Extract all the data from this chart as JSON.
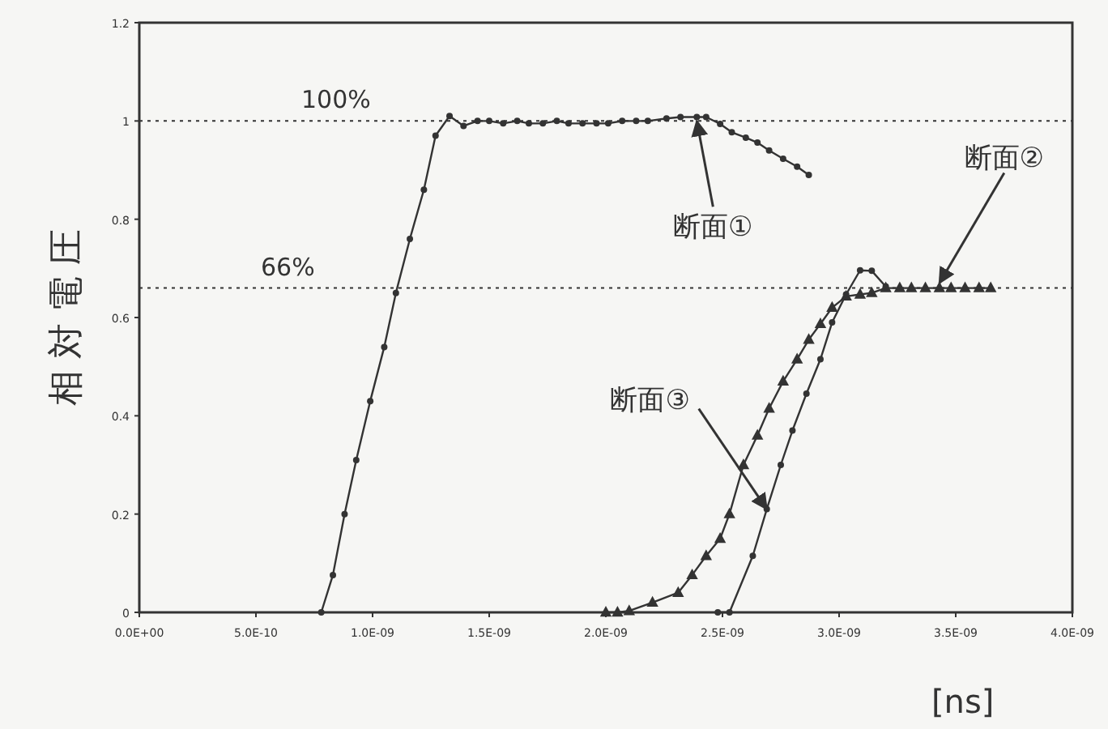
{
  "chart_data": {
    "type": "line",
    "xlabel": "[ns]",
    "ylabel": "相 対 電 圧",
    "xlim": [
      0,
      4e-09
    ],
    "ylim": [
      0,
      1.2
    ],
    "xticks": [
      {
        "value": 0,
        "label": "0.0E+00"
      },
      {
        "value": 5e-10,
        "label": "5.0E-10"
      },
      {
        "value": 1e-09,
        "label": "1.0E-09"
      },
      {
        "value": 1.5e-09,
        "label": "1.5E-09"
      },
      {
        "value": 2e-09,
        "label": "2.0E-09"
      },
      {
        "value": 2.5e-09,
        "label": "2.5E-09"
      },
      {
        "value": 3e-09,
        "label": "3.0E-09"
      },
      {
        "value": 3.5e-09,
        "label": "3.5E-09"
      },
      {
        "value": 4e-09,
        "label": "4.0E-09"
      }
    ],
    "yticks": [
      0,
      0.2,
      0.4,
      0.6,
      0.8,
      1,
      1.2
    ],
    "grid": false,
    "line_style": "solid",
    "series": [
      {
        "color": "#333333",
        "marker": "circle",
        "x": [
          7.8e-10,
          8.3e-10,
          8.8e-10,
          9.3e-10,
          9.9e-10,
          1.05e-09,
          1.1e-09,
          1.16e-09,
          1.22e-09,
          1.27e-09,
          1.33e-09,
          1.39e-09,
          1.45e-09,
          1.5e-09,
          1.56e-09,
          1.62e-09,
          1.67e-09,
          1.73e-09,
          1.79e-09,
          1.84e-09,
          1.9e-09,
          1.96e-09,
          2.01e-09,
          2.07e-09,
          2.13e-09,
          2.18e-09,
          2.26e-09,
          2.32e-09,
          2.39e-09,
          2.43e-09,
          2.49e-09,
          2.54e-09,
          2.6e-09,
          2.65e-09,
          2.7e-09,
          2.76e-09,
          2.82e-09,
          2.87e-09
        ],
        "values": [
          0,
          0.076,
          0.2,
          0.31,
          0.43,
          0.54,
          0.65,
          0.76,
          0.86,
          0.97,
          1.01,
          0.99,
          1.0,
          1.0,
          0.995,
          1.0,
          0.995,
          0.995,
          1.0,
          0.995,
          0.995,
          0.995,
          0.995,
          1.0,
          1.0,
          1.0,
          1.005,
          1.008,
          1.008,
          1.008,
          0.994,
          0.977,
          0.966,
          0.956,
          0.94,
          0.923,
          0.907,
          0.89
        ]
      },
      {
        "color": "#333333",
        "marker": "triangle",
        "x": [
          2e-09,
          2.05e-09,
          2.1e-09,
          2.2e-09,
          2.31e-09,
          2.37e-09,
          2.43e-09,
          2.49e-09,
          2.53e-09,
          2.59e-09,
          2.65e-09,
          2.7e-09,
          2.76e-09,
          2.82e-09,
          2.87e-09,
          2.92e-09,
          2.97e-09,
          3.03e-09,
          3.09e-09,
          3.14e-09,
          3.2e-09,
          3.26e-09,
          3.31e-09,
          3.37e-09,
          3.43e-09,
          3.48e-09,
          3.54e-09,
          3.6e-09,
          3.65e-09
        ],
        "values": [
          0,
          0,
          0.003,
          0.02,
          0.04,
          0.076,
          0.115,
          0.15,
          0.2,
          0.3,
          0.36,
          0.415,
          0.47,
          0.515,
          0.555,
          0.587,
          0.62,
          0.643,
          0.647,
          0.65,
          0.66,
          0.66,
          0.66,
          0.66,
          0.66,
          0.66,
          0.66,
          0.66,
          0.66
        ]
      },
      {
        "color": "#333333",
        "marker": "circle",
        "x": [
          2.48e-09,
          2.53e-09,
          2.63e-09,
          2.69e-09,
          2.75e-09,
          2.8e-09,
          2.86e-09,
          2.92e-09,
          2.97e-09,
          3.03e-09,
          3.09e-09,
          3.14e-09,
          3.2e-09
        ],
        "values": [
          0,
          0,
          0.115,
          0.21,
          0.3,
          0.37,
          0.445,
          0.515,
          0.59,
          0.647,
          0.696,
          0.695,
          0.663
        ]
      }
    ],
    "ref_lines": [
      {
        "axis": "y",
        "value": 1,
        "label": "100%",
        "line_style": "dotted"
      },
      {
        "axis": "y",
        "value": 0.66,
        "label": "66%",
        "line_style": "dotted"
      }
    ],
    "annotations": [
      {
        "text": "断面①",
        "x": 2.39e-09,
        "y": 1.0
      },
      {
        "text": "断面②",
        "x": 3.43e-09,
        "y": 0.67
      },
      {
        "text": "断面③",
        "x": 2.69e-09,
        "y": 0.21
      }
    ]
  }
}
